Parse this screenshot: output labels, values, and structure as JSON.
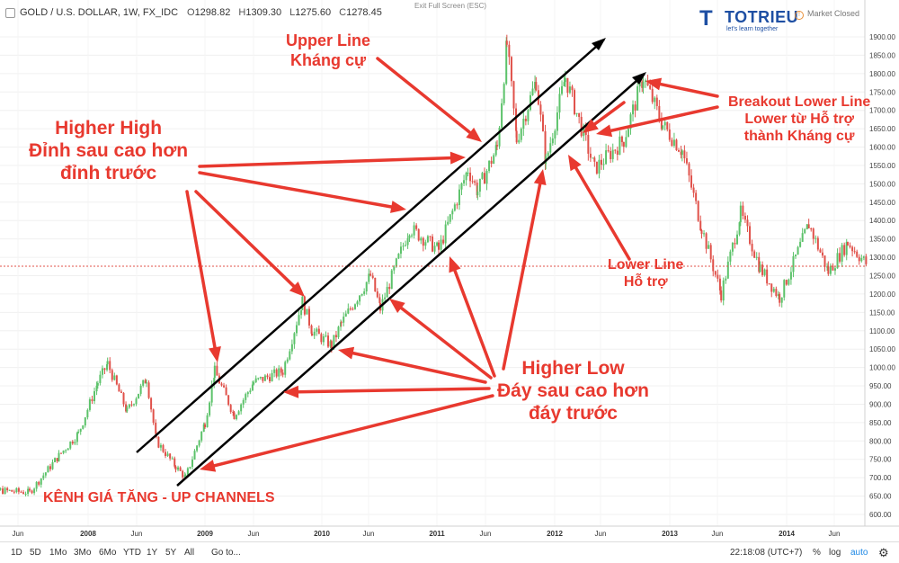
{
  "header": {
    "symbol": "GOLD / U.S. DOLLAR, 1W, FX_IDC",
    "ohlc": [
      {
        "k": "O",
        "v": "1298.82"
      },
      {
        "k": "H",
        "v": "1309.30"
      },
      {
        "k": "L",
        "v": "1275.60"
      },
      {
        "k": "C",
        "v": "1278.45"
      }
    ],
    "exit_fullscreen": "Exit Full Screen (ESC)",
    "market_status": "Market Closed"
  },
  "logo": {
    "mark": "T",
    "name": "TOTRIEU",
    "tagline": "let's learn together"
  },
  "toolbar": {
    "ranges": [
      "1D",
      "5D",
      "1Mo",
      "3Mo",
      "6Mo",
      "YTD",
      "1Y",
      "5Y",
      "All"
    ],
    "goto": "Go to...",
    "time": "22:18:08 (UTC+7)",
    "percent": "%",
    "log": "log",
    "auto": "auto"
  },
  "annotations": {
    "upper_line": [
      "Upper Line",
      "Kháng cự"
    ],
    "higher_high": [
      "Higher High",
      "Đỉnh sau cao hơn",
      "đỉnh trước"
    ],
    "breakout": [
      "Breakout Lower Line",
      "Lower từ Hỗ trợ",
      "thành Kháng cự"
    ],
    "lower_line": [
      "Lower Line",
      "Hỗ trợ"
    ],
    "higher_low": [
      "Higher Low",
      "Đáy sau cao hơn",
      "đáy trước"
    ],
    "channel_title": "KÊNH GIÁ TĂNG - UP CHANNELS"
  },
  "colors": {
    "up": "#5cc26a",
    "down": "#e0514a",
    "annotation": "#e8392f",
    "channel": "#000000",
    "current_price": "#e0514a",
    "accent": "#1e88e5"
  },
  "chart_data": {
    "type": "candlestick",
    "title": "GOLD / U.S. DOLLAR, 1W, FX_IDC",
    "y_range": [
      560,
      1950
    ],
    "y_ticks": [
      600,
      650,
      700,
      750,
      800,
      850,
      900,
      950,
      1000,
      1050,
      1100,
      1150,
      1200,
      1250,
      1300,
      1350,
      1400,
      1450,
      1500,
      1550,
      1600,
      1650,
      1700,
      1750,
      1800,
      1850,
      1900
    ],
    "x_ticks": [
      "Jun",
      "2008",
      "Jun",
      "2009",
      "Jun",
      "2010",
      "Jun",
      "2011",
      "Jun",
      "2012",
      "Jun",
      "2013",
      "Jun",
      "2014",
      "Jun"
    ],
    "current_price": 1278.45,
    "price_path": [
      [
        "2007-01",
        690
      ],
      [
        "2007-04",
        665
      ],
      [
        "2007-07",
        660
      ],
      [
        "2007-10",
        760
      ],
      [
        "2007-12",
        820
      ],
      [
        "2008-02",
        960
      ],
      [
        "2008-03",
        1010
      ],
      [
        "2008-05",
        880
      ],
      [
        "2008-07",
        970
      ],
      [
        "2008-08",
        800
      ],
      [
        "2008-10",
        730
      ],
      [
        "2008-11",
        700
      ],
      [
        "2009-01",
        850
      ],
      [
        "2009-02",
        990
      ],
      [
        "2009-04",
        870
      ],
      [
        "2009-06",
        960
      ],
      [
        "2009-09",
        990
      ],
      [
        "2009-11",
        1180
      ],
      [
        "2009-12",
        1100
      ],
      [
        "2010-02",
        1060
      ],
      [
        "2010-03",
        1120
      ],
      [
        "2010-06",
        1250
      ],
      [
        "2010-07",
        1160
      ],
      [
        "2010-10",
        1380
      ],
      [
        "2011-01",
        1320
      ],
      [
        "2011-04",
        1540
      ],
      [
        "2011-05",
        1480
      ],
      [
        "2011-07",
        1600
      ],
      [
        "2011-08",
        1880
      ],
      [
        "2011-09",
        1620
      ],
      [
        "2011-11",
        1780
      ],
      [
        "2011-12",
        1560
      ],
      [
        "2012-02",
        1790
      ],
      [
        "2012-05",
        1540
      ],
      [
        "2012-08",
        1620
      ],
      [
        "2012-10",
        1790
      ],
      [
        "2012-12",
        1660
      ],
      [
        "2013-02",
        1590
      ],
      [
        "2013-04",
        1380
      ],
      [
        "2013-06",
        1200
      ],
      [
        "2013-08",
        1420
      ],
      [
        "2013-10",
        1270
      ],
      [
        "2013-12",
        1190
      ],
      [
        "2014-03",
        1390
      ],
      [
        "2014-05",
        1260
      ],
      [
        "2014-07",
        1340
      ],
      [
        "2014-09",
        1280
      ]
    ]
  }
}
